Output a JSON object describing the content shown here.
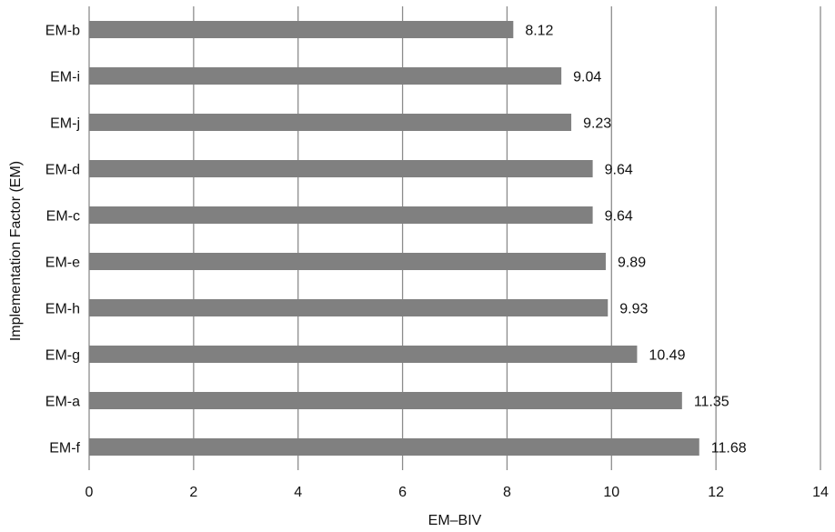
{
  "chart_data": {
    "type": "bar",
    "orientation": "horizontal",
    "categories": [
      "EM-b",
      "EM-i",
      "EM-j",
      "EM-d",
      "EM-c",
      "EM-e",
      "EM-h",
      "EM-g",
      "EM-a",
      "EM-f"
    ],
    "values": [
      8.12,
      9.04,
      9.23,
      9.64,
      9.64,
      9.89,
      9.93,
      10.49,
      11.35,
      11.68
    ],
    "value_labels": [
      "8.12",
      "9.04",
      "9.23",
      "9.64",
      "9.64",
      "9.89",
      "9.93",
      "10.49",
      "11.35",
      "11.68"
    ],
    "xlabel": "EM–BIV",
    "ylabel": "Implementation Factor (EM)",
    "xlim": [
      0,
      14
    ],
    "xticks": [
      "0",
      "2",
      "4",
      "6",
      "8",
      "10",
      "12",
      "14"
    ],
    "grid": "vertical",
    "legend": "none",
    "bar_color": "#808080",
    "grid_color": "#8c8c8c"
  }
}
